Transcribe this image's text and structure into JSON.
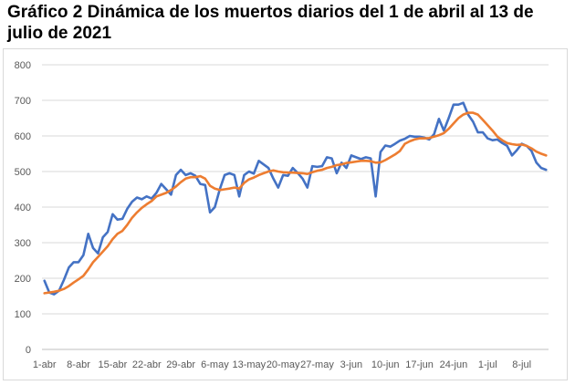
{
  "title": "Gráfico 2 Dinámica de los muertos diarios del 1 de abril al 13 de julio de 2021",
  "chart_data": {
    "type": "line",
    "title": "Gráfico 2 Dinámica de los muertos diarios del 1 de abril al 13 de julio de 2021",
    "xlabel": "",
    "ylabel": "",
    "ylim": [
      0,
      800
    ],
    "yticks": [
      0,
      100,
      200,
      300,
      400,
      500,
      600,
      700,
      800
    ],
    "grid": true,
    "legend": "none",
    "x_tick_labels": [
      "1-abr",
      "8-abr",
      "15-abr",
      "22-abr",
      "29-abr",
      "6-may",
      "13-may",
      "20-may",
      "27-may",
      "3-jun",
      "10-jun",
      "17-jun",
      "24-jun",
      "1-jul",
      "8-jul"
    ],
    "x_tick_index": [
      0,
      7,
      14,
      21,
      28,
      35,
      42,
      49,
      56,
      63,
      70,
      77,
      84,
      91,
      98
    ],
    "series": [
      {
        "color": "#4472c4",
        "values": [
          193,
          160,
          155,
          165,
          195,
          230,
          245,
          245,
          265,
          325,
          285,
          270,
          315,
          330,
          380,
          365,
          367,
          395,
          415,
          427,
          422,
          430,
          424,
          440,
          465,
          450,
          435,
          490,
          505,
          490,
          495,
          488,
          465,
          462,
          385,
          400,
          450,
          490,
          495,
          490,
          430,
          490,
          500,
          494,
          530,
          520,
          510,
          480,
          455,
          490,
          488,
          510,
          496,
          480,
          455,
          515,
          513,
          515,
          540,
          537,
          495,
          525,
          510,
          545,
          540,
          535,
          540,
          537,
          430,
          555,
          573,
          570,
          578,
          587,
          592,
          600,
          598,
          598,
          595,
          590,
          605,
          648,
          615,
          650,
          688,
          688,
          693,
          660,
          640,
          610,
          610,
          593,
          588,
          590,
          580,
          572,
          545,
          560,
          578,
          572,
          558,
          525,
          510,
          505
        ]
      },
      {
        "color": "#ed7d31",
        "values": [
          158,
          160,
          162,
          165,
          170,
          178,
          188,
          197,
          207,
          225,
          245,
          260,
          275,
          290,
          310,
          325,
          333,
          350,
          370,
          385,
          398,
          408,
          417,
          430,
          435,
          440,
          448,
          458,
          470,
          480,
          484,
          484,
          487,
          480,
          460,
          452,
          448,
          450,
          452,
          455,
          452,
          468,
          478,
          483,
          490,
          495,
          500,
          503,
          500,
          498,
          497,
          497,
          496,
          495,
          493,
          498,
          502,
          505,
          510,
          513,
          518,
          520,
          524,
          526,
          528,
          530,
          530,
          529,
          525,
          526,
          532,
          540,
          548,
          558,
          578,
          585,
          590,
          593,
          593,
          594,
          598,
          602,
          608,
          620,
          635,
          650,
          660,
          665,
          665,
          660,
          645,
          630,
          615,
          598,
          588,
          580,
          577,
          575,
          576,
          572,
          565,
          556,
          550,
          545
        ]
      }
    ]
  }
}
